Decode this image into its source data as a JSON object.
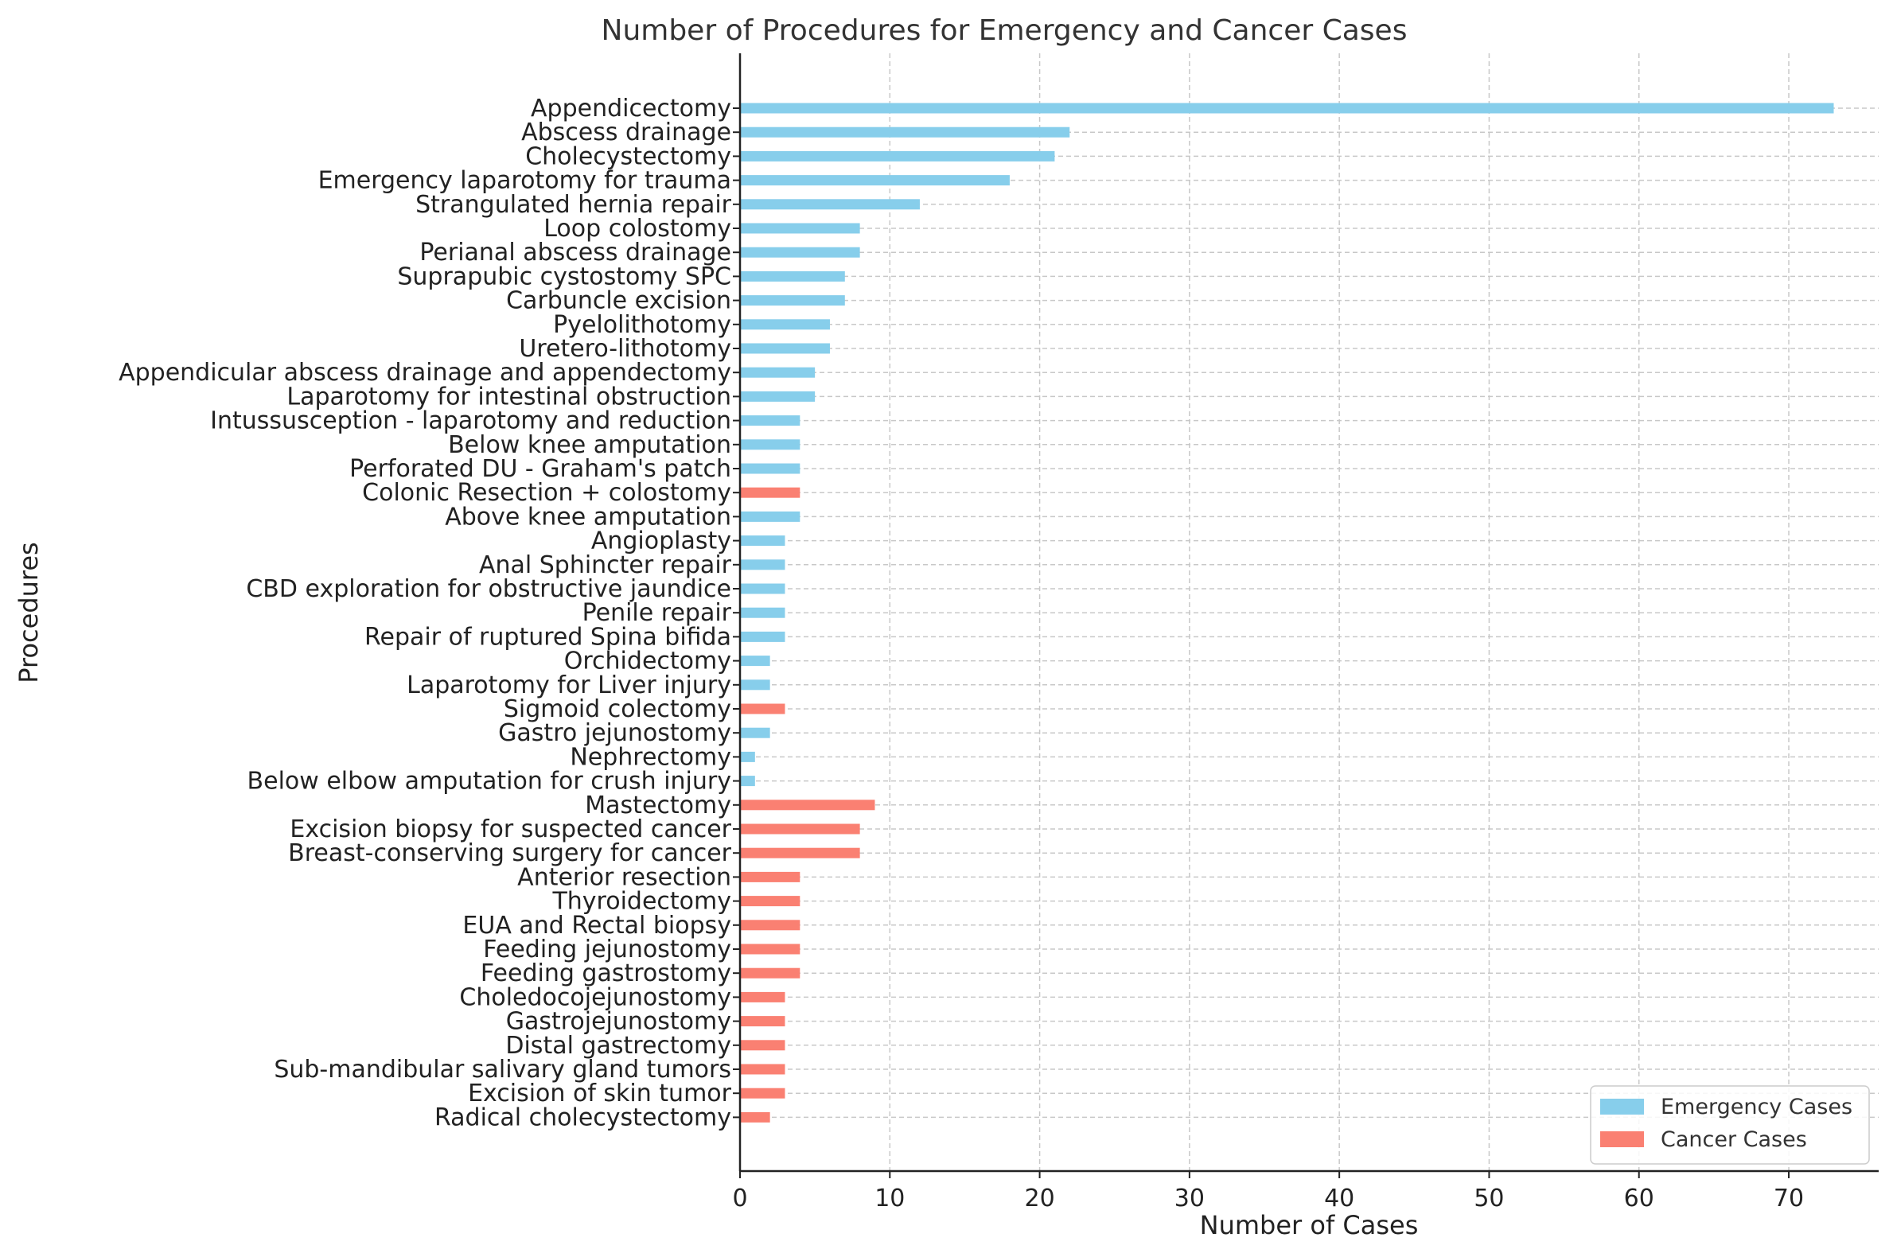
{
  "chart_data": {
    "type": "bar",
    "orientation": "horizontal",
    "title": "Number of Procedures for Emergency and Cancer Cases",
    "xlabel": "Number of Cases",
    "ylabel": "Procedures",
    "xlim": [
      0,
      76
    ],
    "xticks": [
      0,
      10,
      20,
      30,
      40,
      50,
      60,
      70
    ],
    "grid": true,
    "legend_position": "bottom-right",
    "series": [
      {
        "name": "Emergency Cases",
        "color": "#87CEEB"
      },
      {
        "name": "Cancer Cases",
        "color": "#FA8072"
      }
    ],
    "bars": [
      {
        "label": "Appendicectomy",
        "value": 73,
        "series": "Emergency Cases"
      },
      {
        "label": "Abscess drainage",
        "value": 22,
        "series": "Emergency Cases"
      },
      {
        "label": "Cholecystectomy",
        "value": 21,
        "series": "Emergency Cases"
      },
      {
        "label": "Emergency laparotomy for trauma",
        "value": 18,
        "series": "Emergency Cases"
      },
      {
        "label": "Strangulated hernia repair",
        "value": 12,
        "series": "Emergency Cases"
      },
      {
        "label": "Loop colostomy",
        "value": 8,
        "series": "Emergency Cases"
      },
      {
        "label": "Perianal abscess drainage",
        "value": 8,
        "series": "Emergency Cases"
      },
      {
        "label": "Suprapubic cystostomy SPC",
        "value": 7,
        "series": "Emergency Cases"
      },
      {
        "label": "Carbuncle excision",
        "value": 7,
        "series": "Emergency Cases"
      },
      {
        "label": "Pyelolithotomy",
        "value": 6,
        "series": "Emergency Cases"
      },
      {
        "label": "Uretero-lithotomy",
        "value": 6,
        "series": "Emergency Cases"
      },
      {
        "label": "Appendicular abscess drainage and appendectomy",
        "value": 5,
        "series": "Emergency Cases"
      },
      {
        "label": "Laparotomy for intestinal obstruction",
        "value": 5,
        "series": "Emergency Cases"
      },
      {
        "label": "Intussusception - laparotomy and reduction",
        "value": 4,
        "series": "Emergency Cases"
      },
      {
        "label": "Below knee amputation",
        "value": 4,
        "series": "Emergency Cases"
      },
      {
        "label": "Perforated DU - Graham's patch",
        "value": 4,
        "series": "Emergency Cases"
      },
      {
        "label": "Colonic Resection + colostomy",
        "value": 4,
        "series": "Cancer Cases"
      },
      {
        "label": "Above knee amputation",
        "value": 4,
        "series": "Emergency Cases"
      },
      {
        "label": "Angioplasty",
        "value": 3,
        "series": "Emergency Cases"
      },
      {
        "label": "Anal Sphincter repair",
        "value": 3,
        "series": "Emergency Cases"
      },
      {
        "label": "CBD exploration for obstructive jaundice",
        "value": 3,
        "series": "Emergency Cases"
      },
      {
        "label": "Penile repair",
        "value": 3,
        "series": "Emergency Cases"
      },
      {
        "label": "Repair of ruptured Spina bifida",
        "value": 3,
        "series": "Emergency Cases"
      },
      {
        "label": "Orchidectomy",
        "value": 2,
        "series": "Emergency Cases"
      },
      {
        "label": "Laparotomy for Liver injury",
        "value": 2,
        "series": "Emergency Cases"
      },
      {
        "label": "Sigmoid colectomy",
        "value": 3,
        "series": "Cancer Cases"
      },
      {
        "label": "Gastro jejunostomy",
        "value": 2,
        "series": "Emergency Cases"
      },
      {
        "label": "Nephrectomy",
        "value": 1,
        "series": "Emergency Cases"
      },
      {
        "label": "Below elbow amputation for crush injury",
        "value": 1,
        "series": "Emergency Cases"
      },
      {
        "label": "Mastectomy",
        "value": 9,
        "series": "Cancer Cases"
      },
      {
        "label": "Excision biopsy for suspected cancer",
        "value": 8,
        "series": "Cancer Cases"
      },
      {
        "label": "Breast-conserving surgery for cancer",
        "value": 8,
        "series": "Cancer Cases"
      },
      {
        "label": "Anterior resection",
        "value": 4,
        "series": "Cancer Cases"
      },
      {
        "label": "Thyroidectomy",
        "value": 4,
        "series": "Cancer Cases"
      },
      {
        "label": "EUA and Rectal biopsy",
        "value": 4,
        "series": "Cancer Cases"
      },
      {
        "label": "Feeding jejunostomy",
        "value": 4,
        "series": "Cancer Cases"
      },
      {
        "label": "Feeding gastrostomy",
        "value": 4,
        "series": "Cancer Cases"
      },
      {
        "label": "Choledocojejunostomy",
        "value": 3,
        "series": "Cancer Cases"
      },
      {
        "label": "Gastrojejunostomy",
        "value": 3,
        "series": "Cancer Cases"
      },
      {
        "label": "Distal gastrectomy",
        "value": 3,
        "series": "Cancer Cases"
      },
      {
        "label": "Sub-mandibular salivary gland tumors",
        "value": 3,
        "series": "Cancer Cases"
      },
      {
        "label": "Excision of skin tumor",
        "value": 3,
        "series": "Cancer Cases"
      },
      {
        "label": "Radical cholecystectomy",
        "value": 2,
        "series": "Cancer Cases"
      }
    ]
  }
}
